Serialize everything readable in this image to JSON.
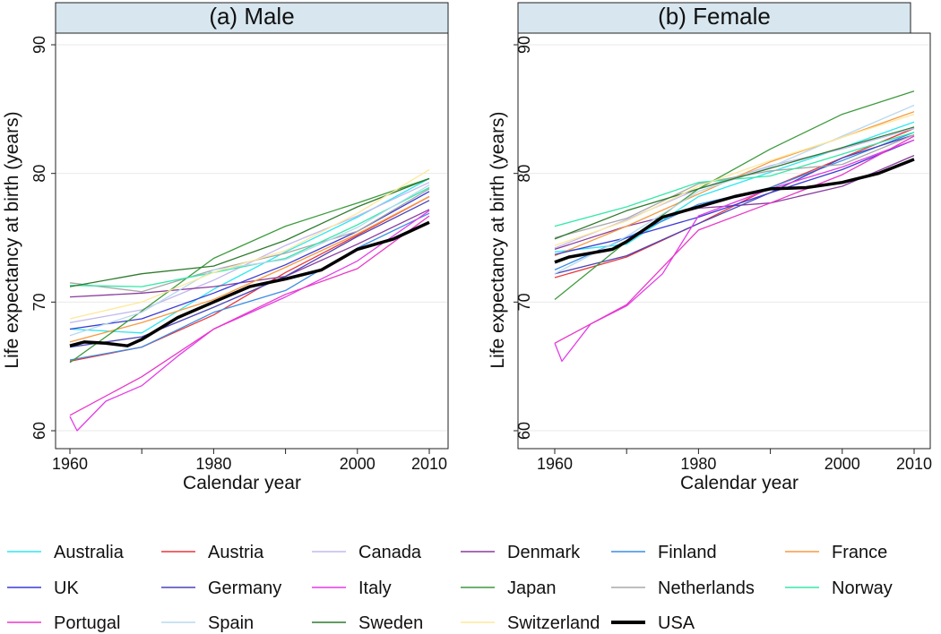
{
  "chart_data": {
    "type": "line",
    "ylabel": "Life expectancy at birth (years)",
    "xlabel": "Calendar year",
    "xlim": [
      1960,
      2010
    ],
    "ylim": [
      60,
      90
    ],
    "xticks": [
      1960,
      1980,
      2000,
      2010
    ],
    "yticks": [
      60,
      70,
      80,
      90
    ],
    "grid": true,
    "legend_position": "bottom",
    "countries": [
      {
        "name": "Australia",
        "color": "#2ee6f0"
      },
      {
        "name": "Austria",
        "color": "#e8373b"
      },
      {
        "name": "Canada",
        "color": "#c3b9ee"
      },
      {
        "name": "Denmark",
        "color": "#8a3c9e"
      },
      {
        "name": "Finland",
        "color": "#3a8ee6"
      },
      {
        "name": "France",
        "color": "#f59a42"
      },
      {
        "name": "UK",
        "color": "#3a3ad6"
      },
      {
        "name": "Germany",
        "color": "#4a44b8"
      },
      {
        "name": "Italy",
        "color": "#e43ce8"
      },
      {
        "name": "Japan",
        "color": "#3d9a3d"
      },
      {
        "name": "Netherlands",
        "color": "#a8a8a8"
      },
      {
        "name": "Norway",
        "color": "#34e8a8"
      },
      {
        "name": "Portugal",
        "color": "#e838c8"
      },
      {
        "name": "Spain",
        "color": "#b8d8ee"
      },
      {
        "name": "Sweden",
        "color": "#2e7a2e"
      },
      {
        "name": "Switzerland",
        "color": "#fde89a"
      },
      {
        "name": "USA",
        "color": "#000000"
      }
    ],
    "panels": [
      {
        "title": "(a) Male",
        "series": [
          {
            "name": "Australia",
            "x": [
              1960,
              1970,
              1980,
              1990,
              2000,
              2010
            ],
            "values": [
              67.9,
              67.6,
              71.0,
              73.9,
              76.6,
              79.6
            ]
          },
          {
            "name": "Austria",
            "x": [
              1960,
              1970,
              1980,
              1990,
              2000,
              2010
            ],
            "values": [
              65.4,
              66.5,
              69.0,
              72.3,
              75.2,
              78.2
            ]
          },
          {
            "name": "Canada",
            "x": [
              1960,
              1970,
              1980,
              1990,
              2000,
              2010
            ],
            "values": [
              68.4,
              69.4,
              71.7,
              74.4,
              76.7,
              79.3
            ]
          },
          {
            "name": "Denmark",
            "x": [
              1960,
              1970,
              1980,
              1990,
              2000,
              2010
            ],
            "values": [
              70.4,
              70.7,
              71.2,
              72.0,
              74.5,
              77.2
            ]
          },
          {
            "name": "Finland",
            "x": [
              1960,
              1970,
              1980,
              1990,
              2000,
              2010
            ],
            "values": [
              65.5,
              66.5,
              69.2,
              70.9,
              74.2,
              76.9
            ]
          },
          {
            "name": "France",
            "x": [
              1960,
              1970,
              1980,
              1990,
              2000,
              2010
            ],
            "values": [
              66.9,
              68.4,
              70.2,
              72.7,
              75.3,
              78.2
            ]
          },
          {
            "name": "UK",
            "x": [
              1960,
              1970,
              1980,
              1990,
              2000,
              2010
            ],
            "values": [
              67.9,
              68.7,
              70.7,
              72.9,
              75.5,
              78.6
            ]
          },
          {
            "name": "Germany",
            "x": [
              1960,
              1970,
              1980,
              1990,
              2000,
              2010
            ],
            "values": [
              66.5,
              67.3,
              69.6,
              72.0,
              75.1,
              77.9
            ]
          },
          {
            "name": "Italy",
            "x": [
              1960,
              1961,
              1965,
              1970,
              1975,
              1980,
              1990,
              2000,
              2010
            ],
            "values": [
              61.1,
              60.0,
              62.3,
              63.5,
              65.8,
              67.9,
              70.4,
              73.2,
              77.1
            ]
          },
          {
            "name": "Japan",
            "x": [
              1960,
              1970,
              1980,
              1990,
              2000,
              2010
            ],
            "values": [
              65.3,
              69.3,
              73.4,
              75.9,
              77.7,
              79.6
            ]
          },
          {
            "name": "Netherlands",
            "x": [
              1960,
              1970,
              1980,
              1990,
              2000,
              2010
            ],
            "values": [
              71.5,
              70.8,
              72.5,
              73.8,
              75.5,
              78.8
            ]
          },
          {
            "name": "Norway",
            "x": [
              1960,
              1970,
              1980,
              1990,
              2000,
              2010
            ],
            "values": [
              71.3,
              71.2,
              72.3,
              73.4,
              76.0,
              78.9
            ]
          },
          {
            "name": "Portugal",
            "x": [
              1960,
              1970,
              1980,
              1990,
              2000,
              2010
            ],
            "values": [
              61.2,
              64.2,
              67.9,
              70.6,
              72.6,
              76.7
            ]
          },
          {
            "name": "Spain",
            "x": [
              1960,
              1970,
              1980,
              1990,
              2000,
              2010
            ],
            "values": [
              67.4,
              69.2,
              72.5,
              73.3,
              75.8,
              79.1
            ]
          },
          {
            "name": "Sweden",
            "x": [
              1960,
              1970,
              1980,
              1990,
              2000,
              2010
            ],
            "values": [
              71.2,
              72.2,
              72.8,
              74.8,
              77.4,
              79.6
            ]
          },
          {
            "name": "Switzerland",
            "x": [
              1960,
              1970,
              1980,
              1990,
              2000,
              2010
            ],
            "values": [
              68.7,
              70.0,
              72.3,
              74.0,
              76.9,
              80.3
            ]
          },
          {
            "name": "USA",
            "x": [
              1960,
              1962,
              1965,
              1968,
              1970,
              1975,
              1980,
              1985,
              1990,
              1995,
              2000,
              2005,
              2010
            ],
            "values": [
              66.6,
              66.9,
              66.8,
              66.6,
              67.1,
              68.8,
              70.0,
              71.2,
              71.8,
              72.5,
              74.1,
              74.9,
              76.2
            ]
          }
        ]
      },
      {
        "title": "(b) Female",
        "series": [
          {
            "name": "Australia",
            "x": [
              1960,
              1970,
              1980,
              1990,
              2000,
              2010
            ],
            "values": [
              73.9,
              74.5,
              78.2,
              80.1,
              82.0,
              84.0
            ]
          },
          {
            "name": "Austria",
            "x": [
              1960,
              1970,
              1980,
              1990,
              2000,
              2010
            ],
            "values": [
              71.9,
              73.5,
              76.1,
              78.9,
              81.2,
              83.5
            ]
          },
          {
            "name": "Canada",
            "x": [
              1960,
              1970,
              1980,
              1990,
              2000,
              2010
            ],
            "values": [
              74.2,
              76.4,
              78.8,
              80.6,
              81.9,
              83.5
            ]
          },
          {
            "name": "Denmark",
            "x": [
              1960,
              1970,
              1980,
              1990,
              2000,
              2010
            ],
            "values": [
              74.1,
              75.9,
              77.3,
              77.7,
              79.0,
              81.4
            ]
          },
          {
            "name": "Finland",
            "x": [
              1960,
              1970,
              1980,
              1990,
              2000,
              2010
            ],
            "values": [
              72.5,
              75.0,
              77.6,
              78.9,
              81.0,
              83.2
            ]
          },
          {
            "name": "France",
            "x": [
              1960,
              1970,
              1980,
              1990,
              2000,
              2010
            ],
            "values": [
              73.6,
              75.9,
              78.4,
              80.9,
              82.8,
              84.8
            ]
          },
          {
            "name": "UK",
            "x": [
              1960,
              1970,
              1980,
              1990,
              2000,
              2010
            ],
            "values": [
              73.7,
              75.0,
              76.6,
              78.5,
              80.3,
              82.6
            ]
          },
          {
            "name": "Germany",
            "x": [
              1960,
              1970,
              1980,
              1990,
              2000,
              2010
            ],
            "values": [
              72.2,
              73.6,
              76.1,
              78.5,
              81.2,
              83.0
            ]
          },
          {
            "name": "Italy",
            "x": [
              1960,
              1961,
              1965,
              1970,
              1975,
              1980,
              1990,
              2000,
              2010
            ],
            "values": [
              66.8,
              65.4,
              68.3,
              69.7,
              72.2,
              76.7,
              78.8,
              80.5,
              82.6
            ]
          },
          {
            "name": "Japan",
            "x": [
              1960,
              1970,
              1980,
              1990,
              2000,
              2010
            ],
            "values": [
              70.2,
              74.7,
              78.8,
              81.9,
              84.6,
              86.4
            ]
          },
          {
            "name": "Netherlands",
            "x": [
              1960,
              1970,
              1980,
              1990,
              2000,
              2010
            ],
            "values": [
              75.0,
              76.5,
              79.2,
              80.2,
              80.7,
              83.0
            ]
          },
          {
            "name": "Norway",
            "x": [
              1960,
              1970,
              1980,
              1990,
              2000,
              2010
            ],
            "values": [
              75.9,
              77.4,
              79.3,
              79.8,
              81.5,
              83.2
            ]
          },
          {
            "name": "Portugal",
            "x": [
              1960,
              1970,
              1980,
              1990,
              2000,
              2010
            ],
            "values": [
              66.8,
              69.8,
              75.6,
              77.7,
              79.9,
              82.9
            ]
          },
          {
            "name": "Spain",
            "x": [
              1960,
              1970,
              1980,
              1990,
              2000,
              2010
            ],
            "values": [
              72.2,
              75.1,
              78.6,
              80.5,
              82.9,
              85.3
            ]
          },
          {
            "name": "Sweden",
            "x": [
              1960,
              1970,
              1980,
              1990,
              2000,
              2010
            ],
            "values": [
              74.9,
              77.1,
              78.8,
              80.4,
              82.0,
              83.6
            ]
          },
          {
            "name": "Switzerland",
            "x": [
              1960,
              1970,
              1980,
              1990,
              2000,
              2010
            ],
            "values": [
              74.4,
              76.3,
              79.0,
              81.0,
              82.8,
              84.6
            ]
          },
          {
            "name": "USA",
            "x": [
              1960,
              1962,
              1965,
              1968,
              1970,
              1975,
              1980,
              1985,
              1990,
              1995,
              2000,
              2005,
              2010
            ],
            "values": [
              73.1,
              73.5,
              73.8,
              74.1,
              74.7,
              76.6,
              77.4,
              78.2,
              78.8,
              78.9,
              79.3,
              80.0,
              81.1
            ]
          }
        ]
      }
    ]
  }
}
